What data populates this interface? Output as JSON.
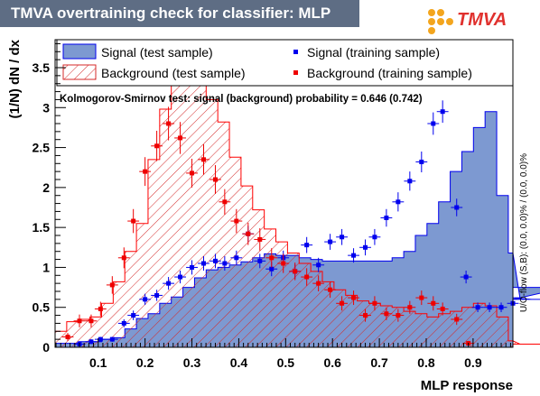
{
  "header": {
    "title": "TMVA overtraining check for classifier: MLP"
  },
  "logo": {
    "text": "TMVA",
    "accent": "#e0312e",
    "dots": "#f3a51d"
  },
  "chart_data": {
    "type": "histogram",
    "xlabel": "MLP response",
    "ylabel": "(1/N) dN / dx",
    "xlim": [
      0.008,
      0.985
    ],
    "ylim": [
      0,
      3.85
    ],
    "xticks": [
      "0.1",
      "0.2",
      "0.3",
      "0.4",
      "0.5",
      "0.6",
      "0.7",
      "0.8",
      "0.9"
    ],
    "xtick_values": [
      0.1,
      0.2,
      0.3,
      0.4,
      0.5,
      0.6,
      0.7,
      0.8,
      0.9
    ],
    "yticks": [
      "0",
      "0.5",
      "1",
      "1.5",
      "2",
      "2.5",
      "3",
      "3.5"
    ],
    "ytick_values": [
      0,
      0.5,
      1,
      1.5,
      2,
      2.5,
      3,
      3.5
    ],
    "ks_text": "Kolmogorov-Smirnov test: signal (background) probability = 0.646 (0.742)",
    "side_label": "U/O-flow (S,B): (0.0, 0.0)% / (0.0, 0.0)%",
    "legend": {
      "sig_test": "Signal (test sample)",
      "bkg_test": "Background (test sample)",
      "sig_train": "Signal (training sample)",
      "bkg_train": "Background (training sample)"
    },
    "colors": {
      "signal_fill": "#7d99d1",
      "signal_line": "#0000ee",
      "background_hatch": "#d42a2a",
      "background_line": "#ff0000",
      "sig_marker": "#0000ee",
      "bkg_marker": "#ee0000"
    },
    "bin_edges_start": 0.008,
    "bin_width": 0.0248,
    "signal_test": [
      0.05,
      0.05,
      0.07,
      0.07,
      0.1,
      0.12,
      0.23,
      0.36,
      0.42,
      0.55,
      0.63,
      0.75,
      0.87,
      0.97,
      1.0,
      1.03,
      1.07,
      1.12,
      1.17,
      1.15,
      1.15,
      1.12,
      1.1,
      1.08,
      1.08,
      1.08,
      1.08,
      1.08,
      1.08,
      1.12,
      1.2,
      1.4,
      1.55,
      1.82,
      2.2,
      2.45,
      2.75,
      2.95,
      1.9,
      1.18,
      0.62,
      0.6,
      0.6,
      0.6,
      0.75
    ],
    "background_test": [
      0.2,
      0.32,
      0.35,
      0.38,
      0.55,
      0.82,
      1.2,
      1.55,
      2.35,
      2.98,
      3.35,
      3.52,
      3.4,
      3.1,
      2.82,
      2.38,
      2.02,
      1.72,
      1.48,
      1.32,
      1.18,
      1.05,
      0.95,
      0.82,
      0.72,
      0.65,
      0.58,
      0.55,
      0.52,
      0.5,
      0.45,
      0.42,
      0.38,
      0.42,
      0.45,
      0.5,
      0.55,
      0.52,
      0.38,
      0.08,
      0.04,
      0.04,
      0.04,
      0.04,
      0.04
    ],
    "signal_train": [
      {
        "x": 0.06,
        "y": 0.04,
        "e": 0.03
      },
      {
        "x": 0.085,
        "y": 0.07,
        "e": 0.03
      },
      {
        "x": 0.105,
        "y": 0.1,
        "e": 0.03
      },
      {
        "x": 0.13,
        "y": 0.1,
        "e": 0.03
      },
      {
        "x": 0.155,
        "y": 0.3,
        "e": 0.05
      },
      {
        "x": 0.175,
        "y": 0.4,
        "e": 0.06
      },
      {
        "x": 0.2,
        "y": 0.6,
        "e": 0.07
      },
      {
        "x": 0.225,
        "y": 0.65,
        "e": 0.07
      },
      {
        "x": 0.25,
        "y": 0.8,
        "e": 0.08
      },
      {
        "x": 0.275,
        "y": 0.88,
        "e": 0.08
      },
      {
        "x": 0.3,
        "y": 1.0,
        "e": 0.09
      },
      {
        "x": 0.325,
        "y": 1.05,
        "e": 0.09
      },
      {
        "x": 0.35,
        "y": 1.08,
        "e": 0.09
      },
      {
        "x": 0.37,
        "y": 1.05,
        "e": 0.09
      },
      {
        "x": 0.395,
        "y": 1.12,
        "e": 0.09
      },
      {
        "x": 0.42,
        "y": 1.42,
        "e": 0.1
      },
      {
        "x": 0.445,
        "y": 1.08,
        "e": 0.09
      },
      {
        "x": 0.47,
        "y": 0.98,
        "e": 0.09
      },
      {
        "x": 0.495,
        "y": 1.12,
        "e": 0.09
      },
      {
        "x": 0.52,
        "y": 0.95,
        "e": 0.09
      },
      {
        "x": 0.545,
        "y": 1.28,
        "e": 0.1
      },
      {
        "x": 0.57,
        "y": 1.03,
        "e": 0.09
      },
      {
        "x": 0.595,
        "y": 1.32,
        "e": 0.1
      },
      {
        "x": 0.62,
        "y": 1.38,
        "e": 0.1
      },
      {
        "x": 0.645,
        "y": 1.15,
        "e": 0.09
      },
      {
        "x": 0.67,
        "y": 1.25,
        "e": 0.1
      },
      {
        "x": 0.69,
        "y": 1.38,
        "e": 0.1
      },
      {
        "x": 0.715,
        "y": 1.62,
        "e": 0.11
      },
      {
        "x": 0.74,
        "y": 1.82,
        "e": 0.12
      },
      {
        "x": 0.765,
        "y": 2.08,
        "e": 0.12
      },
      {
        "x": 0.79,
        "y": 2.32,
        "e": 0.13
      },
      {
        "x": 0.815,
        "y": 2.8,
        "e": 0.14
      },
      {
        "x": 0.835,
        "y": 2.95,
        "e": 0.14
      },
      {
        "x": 0.865,
        "y": 1.75,
        "e": 0.11
      },
      {
        "x": 0.885,
        "y": 0.88,
        "e": 0.08
      },
      {
        "x": 0.91,
        "y": 0.5,
        "e": 0.06
      },
      {
        "x": 0.935,
        "y": 0.5,
        "e": 0.06
      },
      {
        "x": 0.96,
        "y": 0.5,
        "e": 0.06
      },
      {
        "x": 0.985,
        "y": 0.55,
        "e": 0.06
      }
    ],
    "background_train": [
      {
        "x": 0.035,
        "y": 0.13,
        "e": 0.05
      },
      {
        "x": 0.06,
        "y": 0.33,
        "e": 0.08
      },
      {
        "x": 0.085,
        "y": 0.33,
        "e": 0.08
      },
      {
        "x": 0.105,
        "y": 0.48,
        "e": 0.09
      },
      {
        "x": 0.13,
        "y": 0.78,
        "e": 0.11
      },
      {
        "x": 0.155,
        "y": 1.12,
        "e": 0.13
      },
      {
        "x": 0.175,
        "y": 1.58,
        "e": 0.15
      },
      {
        "x": 0.2,
        "y": 2.2,
        "e": 0.18
      },
      {
        "x": 0.225,
        "y": 2.52,
        "e": 0.19
      },
      {
        "x": 0.25,
        "y": 2.8,
        "e": 0.21
      },
      {
        "x": 0.275,
        "y": 2.62,
        "e": 0.2
      },
      {
        "x": 0.3,
        "y": 2.18,
        "e": 0.18
      },
      {
        "x": 0.325,
        "y": 2.35,
        "e": 0.19
      },
      {
        "x": 0.35,
        "y": 2.1,
        "e": 0.18
      },
      {
        "x": 0.37,
        "y": 1.82,
        "e": 0.16
      },
      {
        "x": 0.395,
        "y": 1.58,
        "e": 0.15
      },
      {
        "x": 0.42,
        "y": 1.42,
        "e": 0.14
      },
      {
        "x": 0.445,
        "y": 1.35,
        "e": 0.14
      },
      {
        "x": 0.47,
        "y": 1.12,
        "e": 0.12
      },
      {
        "x": 0.495,
        "y": 1.05,
        "e": 0.12
      },
      {
        "x": 0.52,
        "y": 0.95,
        "e": 0.11
      },
      {
        "x": 0.545,
        "y": 0.88,
        "e": 0.11
      },
      {
        "x": 0.57,
        "y": 0.8,
        "e": 0.1
      },
      {
        "x": 0.595,
        "y": 0.72,
        "e": 0.1
      },
      {
        "x": 0.62,
        "y": 0.55,
        "e": 0.09
      },
      {
        "x": 0.645,
        "y": 0.62,
        "e": 0.09
      },
      {
        "x": 0.67,
        "y": 0.4,
        "e": 0.08
      },
      {
        "x": 0.69,
        "y": 0.55,
        "e": 0.09
      },
      {
        "x": 0.715,
        "y": 0.42,
        "e": 0.08
      },
      {
        "x": 0.74,
        "y": 0.4,
        "e": 0.08
      },
      {
        "x": 0.765,
        "y": 0.5,
        "e": 0.08
      },
      {
        "x": 0.79,
        "y": 0.62,
        "e": 0.09
      },
      {
        "x": 0.815,
        "y": 0.55,
        "e": 0.09
      },
      {
        "x": 0.835,
        "y": 0.48,
        "e": 0.08
      },
      {
        "x": 0.865,
        "y": 0.35,
        "e": 0.07
      },
      {
        "x": 0.89,
        "y": 0.05,
        "e": 0.03
      }
    ]
  }
}
